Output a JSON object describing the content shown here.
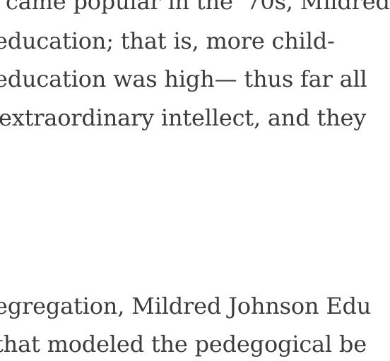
{
  "document": {
    "paragraph_1": [
      "came popular in the '70s, Mildred",
      "education; that is, more child-",
      "education was high— thus far all",
      "extraordinary intellect, and they"
    ],
    "paragraph_2": [
      "egregation, Mildred Johnson Edu",
      "that modeled the pedegogical be"
    ]
  },
  "colors": {
    "text": "#3c3c3c",
    "background": "#ffffff"
  }
}
